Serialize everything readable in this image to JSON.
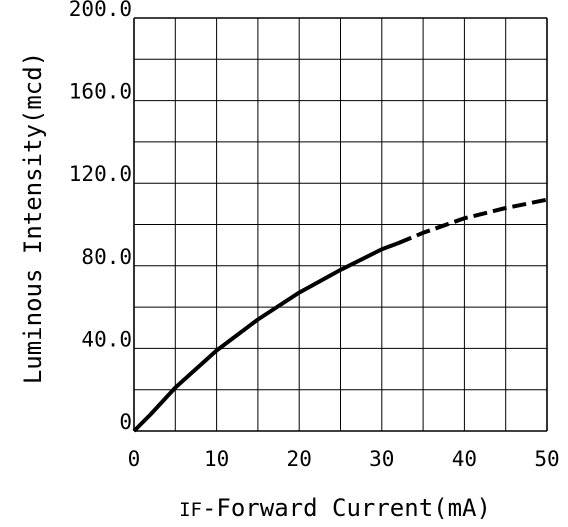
{
  "chart_data": {
    "type": "line",
    "title": "",
    "xlabel_prefix": "IF",
    "xlabel": "-Forward Current(mA)",
    "ylabel": "Luminous Intensity(mcd)",
    "xlim": [
      0,
      50
    ],
    "ylim": [
      0,
      200
    ],
    "grid": true,
    "x_ticks": [
      0,
      10,
      20,
      30,
      40,
      50
    ],
    "x_tick_labels": [
      "0",
      "10",
      "20",
      "30",
      "40",
      "50"
    ],
    "y_ticks": [
      0,
      40,
      80,
      120,
      160,
      200
    ],
    "y_tick_labels": [
      "0",
      "40.0",
      "80.0",
      "120.0",
      "160.0",
      "200.0"
    ],
    "series": [
      {
        "style": "solid",
        "x": [
          0,
          2,
          5,
          10,
          15,
          20,
          25,
          30,
          32
        ],
        "y": [
          0,
          8,
          21,
          39,
          54,
          67,
          78,
          88,
          91
        ]
      },
      {
        "style": "dashed",
        "x": [
          32,
          35,
          40,
          45,
          50
        ],
        "y": [
          91,
          96,
          103,
          108,
          112
        ]
      }
    ],
    "colors": {
      "line": "#000000",
      "grid": "#000000",
      "background": "#ffffff"
    }
  }
}
